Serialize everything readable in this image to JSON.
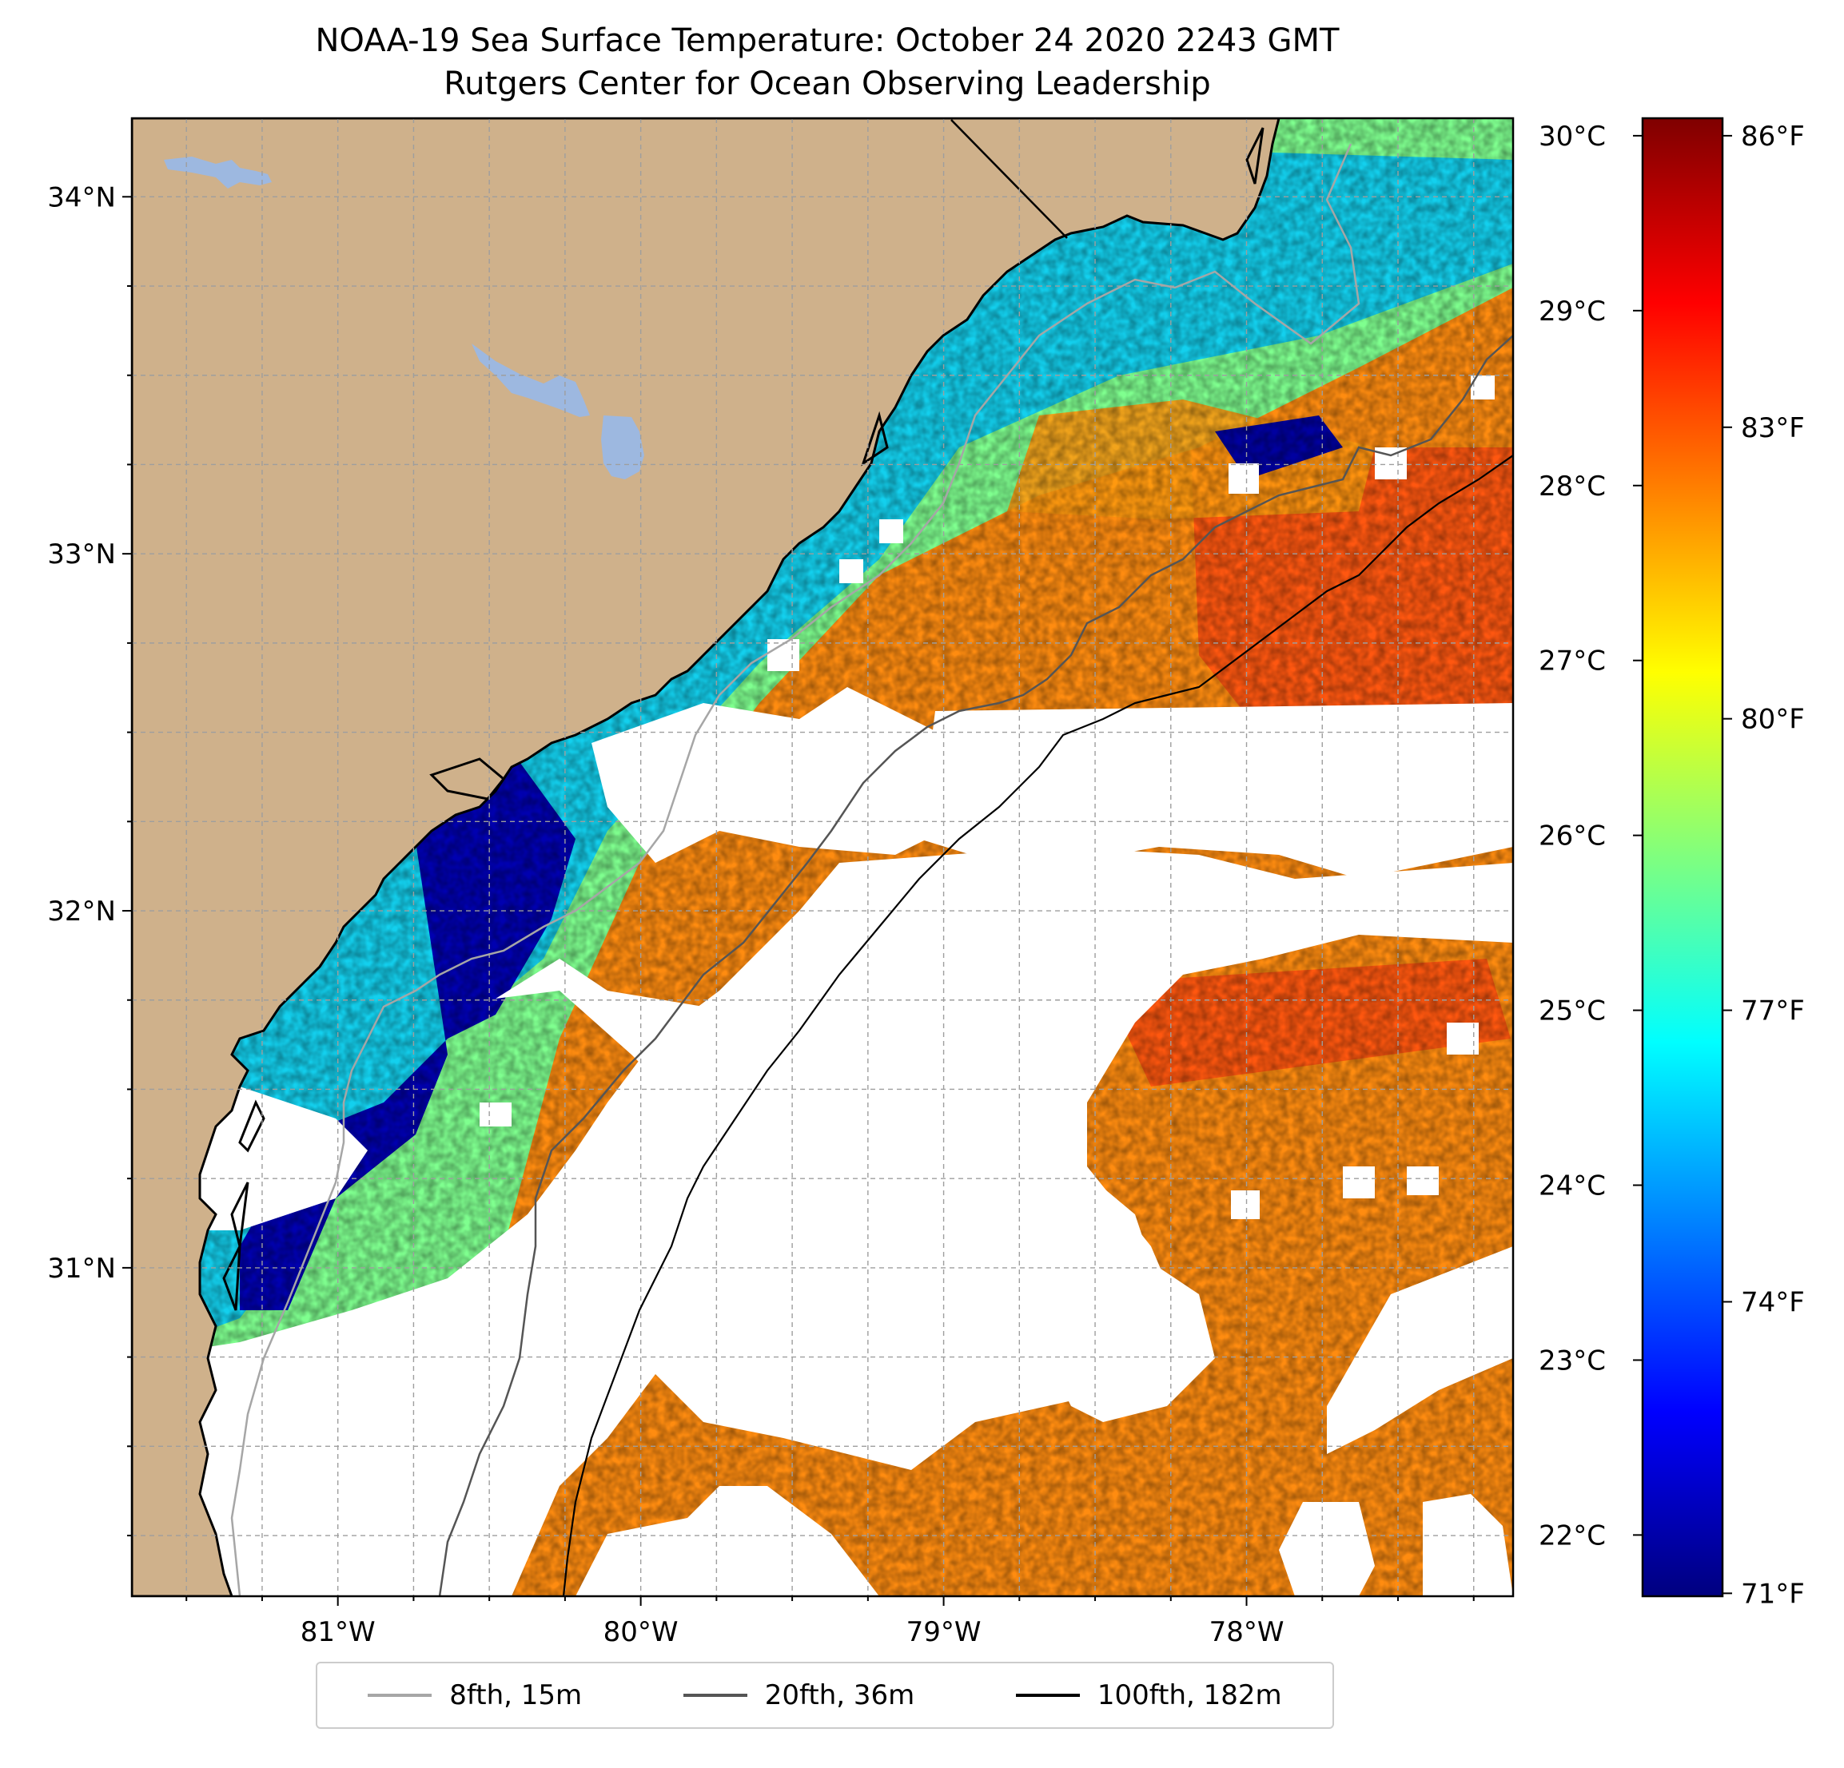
{
  "title": {
    "line1": "NOAA-19 Sea Surface Temperature: October 24 2020 2243 GMT",
    "line2": "Rutgers Center for Ocean Observing Leadership"
  },
  "map": {
    "lon_range": [
      -81.68,
      -77.12
    ],
    "lat_range": [
      30.08,
      34.22
    ],
    "lon_ticks": [
      {
        "value": -81,
        "label": "81°W"
      },
      {
        "value": -80,
        "label": "80°W"
      },
      {
        "value": -79,
        "label": "79°W"
      },
      {
        "value": -78,
        "label": "78°W"
      }
    ],
    "lat_ticks": [
      {
        "value": 34,
        "label": "34°N"
      },
      {
        "value": 33,
        "label": "33°N"
      },
      {
        "value": 32,
        "label": "32°N"
      },
      {
        "value": 31,
        "label": "31°N"
      }
    ],
    "gridlines": true,
    "land_color": "#cfb18b",
    "lake_color": "#9db8e0",
    "no_data_color": "#ffffff"
  },
  "colorbar": {
    "colormap": "jet",
    "celsius_ticks": [
      {
        "value": 30,
        "label": "30°C"
      },
      {
        "value": 29,
        "label": "29°C"
      },
      {
        "value": 28,
        "label": "28°C"
      },
      {
        "value": 27,
        "label": "27°C"
      },
      {
        "value": 26,
        "label": "26°C"
      },
      {
        "value": 25,
        "label": "25°C"
      },
      {
        "value": 24,
        "label": "24°C"
      },
      {
        "value": 23,
        "label": "23°C"
      },
      {
        "value": 22,
        "label": "22°C"
      }
    ],
    "fahrenheit_ticks": [
      {
        "value": 86,
        "label": "86°F"
      },
      {
        "value": 83,
        "label": "83°F"
      },
      {
        "value": 80,
        "label": "80°F"
      },
      {
        "value": 77,
        "label": "77°F"
      },
      {
        "value": 74,
        "label": "74°F"
      },
      {
        "value": 71,
        "label": "71°F"
      }
    ],
    "range_c": [
      21.65,
      30.1
    ],
    "colors": [
      "#00007f",
      "#0000ff",
      "#007fff",
      "#00ffff",
      "#7fff7f",
      "#ffff00",
      "#ff7f00",
      "#ff0000",
      "#7f0000"
    ]
  },
  "legend": {
    "items": [
      {
        "label": "8fth, 15m",
        "color": "#a6a6a6"
      },
      {
        "label": "20fth, 36m",
        "color": "#555555"
      },
      {
        "label": "100fth, 182m",
        "color": "#000000"
      }
    ]
  }
}
